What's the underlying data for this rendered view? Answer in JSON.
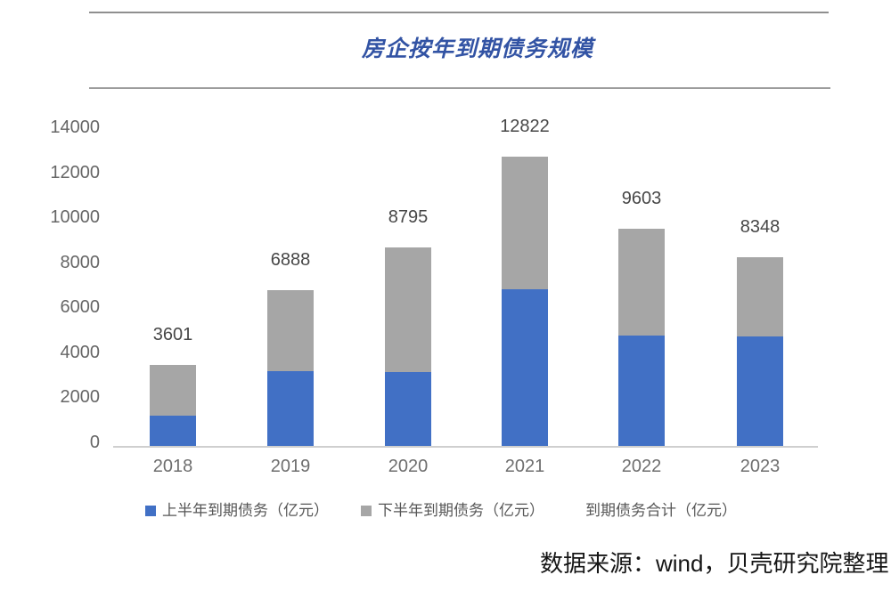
{
  "header": {
    "title": "房企按年到期债务规模"
  },
  "chart_data": {
    "type": "bar",
    "subtype": "stacked",
    "title": "房企按年到期债务规模",
    "categories": [
      "2018",
      "2019",
      "2020",
      "2021",
      "2022",
      "2023"
    ],
    "series": [
      {
        "name": "上半年到期债务（亿元）",
        "color": "#4170c5",
        "values": [
          1350,
          3330,
          3290,
          6950,
          4900,
          4850
        ]
      },
      {
        "name": "下半年到期债务（亿元）",
        "color": "#a6a6a6",
        "values": [
          2251,
          3558,
          5505,
          5872,
          4703,
          3498
        ]
      }
    ],
    "totals": [
      3601,
      6888,
      8795,
      12822,
      9603,
      8348
    ],
    "total_series_name": "到期债务合计（亿元）",
    "ylim": [
      0,
      14000
    ],
    "yticks": [
      0,
      2000,
      4000,
      6000,
      8000,
      10000,
      12000,
      14000
    ],
    "grid": false,
    "legend_position": "bottom"
  },
  "footer": {
    "source": "数据来源：wind，贝壳研究院整理"
  }
}
